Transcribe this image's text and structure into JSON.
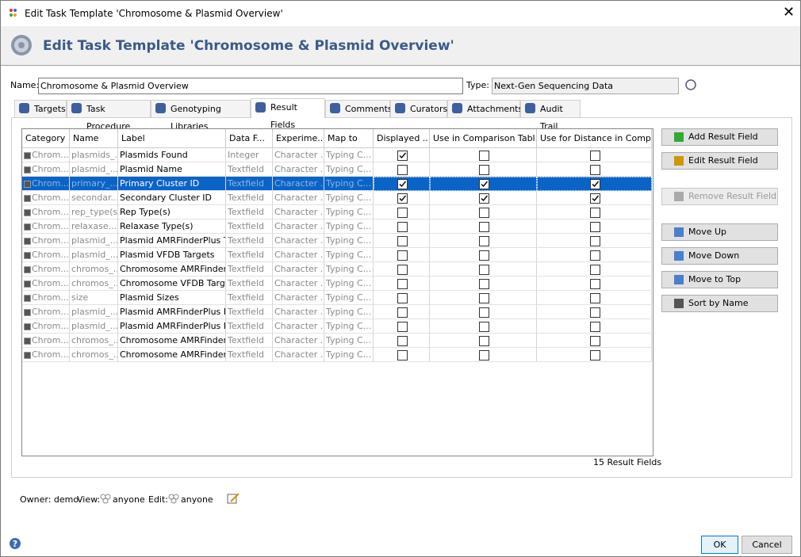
{
  "window_title": "Edit Task Template 'Chromosome & Plasmid Overview'",
  "header_title": "Edit Task Template 'Chromosome & Plasmid Overview'",
  "form": {
    "name_label": "Name:",
    "name_value": "Chromosome & Plasmid Overview",
    "type_label": "Type:",
    "type_value": "Next-Gen Sequencing Data"
  },
  "tabs": [
    "Targets",
    "Task Procedure",
    "Genotyping Libraries",
    "Result Fields",
    "Comments",
    "Curators",
    "Attachments",
    "Audit Trail"
  ],
  "active_tab": 3,
  "table": {
    "columns": [
      "Category",
      "Name",
      "Label",
      "Data F...",
      "Experime...",
      "Map to",
      "Displayed ...",
      "Use in Comparison Tabl...",
      "Use for Distance in Comp..."
    ],
    "selected_row": 2,
    "rows": [
      [
        "Chrom...",
        "plasmids_...",
        "Plasmids Found",
        "Integer",
        "Character ...",
        "Typing C...",
        true,
        false,
        false
      ],
      [
        "Chrom...",
        "plasmid_...",
        "Plasmid Name",
        "Textfield",
        "Character ...",
        "Typing C...",
        false,
        false,
        false
      ],
      [
        "Chrom...",
        "primary_...",
        "Primary Cluster ID",
        "Textfield",
        "Character ...",
        "Typing C...",
        true,
        true,
        true
      ],
      [
        "Chrom...",
        "secondar...",
        "Secondary Cluster ID",
        "Textfield",
        "Character ...",
        "Typing C...",
        true,
        true,
        true
      ],
      [
        "Chrom...",
        "rep_type(s)",
        "Rep Type(s)",
        "Textfield",
        "Character ...",
        "Typing C...",
        false,
        false,
        false
      ],
      [
        "Chrom...",
        "relaxase...",
        "Relaxase Type(s)",
        "Textfield",
        "Character ...",
        "Typing C...",
        false,
        false,
        false
      ],
      [
        "Chrom...",
        "plasmid_...",
        "Plasmid AMRFinderPlus T...",
        "Textfield",
        "Character ...",
        "Typing C...",
        false,
        false,
        false
      ],
      [
        "Chrom...",
        "plasmid_...",
        "Plasmid VFDB Targets",
        "Textfield",
        "Character ...",
        "Typing C...",
        false,
        false,
        false
      ],
      [
        "Chrom...",
        "chromos_...",
        "Chromosome AMRFinder...",
        "Textfield",
        "Character ...",
        "Typing C...",
        false,
        false,
        false
      ],
      [
        "Chrom...",
        "chromos_...",
        "Chromosome VFDB Targets",
        "Textfield",
        "Character ...",
        "Typing C...",
        false,
        false,
        false
      ],
      [
        "Chrom...",
        "size",
        "Plasmid Sizes",
        "Textfield",
        "Character ...",
        "Typing C...",
        false,
        false,
        false
      ],
      [
        "Chrom...",
        "plasmid_...",
        "Plasmid AMRFinderPlus P...",
        "Textfield",
        "Character ...",
        "Typing C...",
        false,
        false,
        false
      ],
      [
        "Chrom...",
        "plasmid_...",
        "Plasmid AMRFinderPlus P...",
        "Textfield",
        "Character ...",
        "Typing C...",
        false,
        false,
        false
      ],
      [
        "Chrom...",
        "chromos_...",
        "Chromosome AMRFinder...",
        "Textfield",
        "Character ...",
        "Typing C...",
        false,
        false,
        false
      ],
      [
        "Chrom...",
        "chromos_...",
        "Chromosome AMRFinder...",
        "Textfield",
        "Character ...",
        "Typing C...",
        false,
        false,
        false
      ]
    ],
    "count_label": "15 Result Fields"
  },
  "buttons": [
    {
      "label": "Add Result Field",
      "enabled": true
    },
    {
      "label": "Edit Result Field",
      "enabled": true
    },
    {
      "label": "Remove Result Field",
      "enabled": false
    },
    {
      "label": "Move Up",
      "enabled": true
    },
    {
      "label": "Move Down",
      "enabled": true
    },
    {
      "label": "Move to Top",
      "enabled": true
    },
    {
      "label": "Sort by Name",
      "enabled": true
    }
  ],
  "footer": {
    "owner": "Owner: demo",
    "view_label": "View:",
    "view_value": "anyone",
    "edit_label": "Edit:",
    "edit_value": "anyone"
  },
  "dialog_buttons": [
    "OK",
    "Cancel"
  ]
}
